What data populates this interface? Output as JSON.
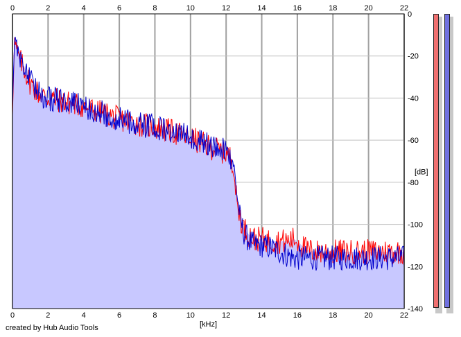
{
  "chart_data": {
    "type": "area",
    "xlabel": "[kHz]",
    "ylabel": "[dB]",
    "xlim": [
      0,
      22
    ],
    "ylim": [
      -140,
      0
    ],
    "x_ticks": [
      0,
      2,
      4,
      6,
      8,
      10,
      12,
      14,
      16,
      18,
      20,
      22
    ],
    "y_ticks": [
      0,
      -20,
      -40,
      -60,
      -80,
      -100,
      -120,
      -140
    ],
    "grid": true,
    "series": [
      {
        "color": "#ff0000",
        "x": [
          0,
          0.1,
          0.3,
          0.6,
          1.0,
          1.5,
          2.0,
          3.0,
          4.0,
          5.0,
          6.0,
          7.0,
          8.0,
          9.0,
          10.0,
          11.0,
          12.0,
          12.4,
          12.6,
          12.8,
          13.0,
          13.3,
          13.6,
          14.0,
          14.5,
          15.0,
          15.5,
          15.8,
          16.0,
          16.5,
          17.0,
          18.0,
          19.0,
          20.0,
          21.0,
          22.0
        ],
        "values": [
          -45,
          -13,
          -20,
          -25,
          -33,
          -38,
          -40,
          -42,
          -44,
          -47,
          -50,
          -52,
          -54,
          -56,
          -59,
          -63,
          -66,
          -70,
          -90,
          -97,
          -102,
          -105,
          -107,
          -107,
          -108,
          -108,
          -108,
          -107,
          -108,
          -112,
          -113,
          -113,
          -113,
          -113,
          -113,
          -113
        ]
      },
      {
        "color": "#0000cc",
        "x": [
          0,
          0.1,
          0.3,
          0.6,
          1.0,
          1.5,
          2.0,
          3.0,
          4.0,
          5.0,
          6.0,
          7.0,
          8.0,
          9.0,
          10.0,
          11.0,
          12.0,
          12.4,
          12.6,
          12.8,
          13.0,
          13.3,
          13.6,
          14.0,
          14.5,
          15.0,
          15.5,
          15.8,
          16.0,
          16.5,
          17.0,
          18.0,
          19.0,
          20.0,
          21.0,
          22.0
        ],
        "values": [
          -45,
          -10,
          -18,
          -24,
          -32,
          -38,
          -40,
          -42,
          -44,
          -47,
          -50,
          -52,
          -54,
          -56,
          -58,
          -62,
          -65,
          -70,
          -85,
          -98,
          -104,
          -108,
          -110,
          -110,
          -111,
          -113,
          -115,
          -116,
          -116,
          -116,
          -116,
          -116,
          -116,
          -116,
          -116,
          -116
        ]
      }
    ]
  },
  "footer": {
    "credit": "created by Hub Audio Tools"
  },
  "meters": {
    "left_color": "#f07070",
    "right_color": "#7070e0"
  }
}
